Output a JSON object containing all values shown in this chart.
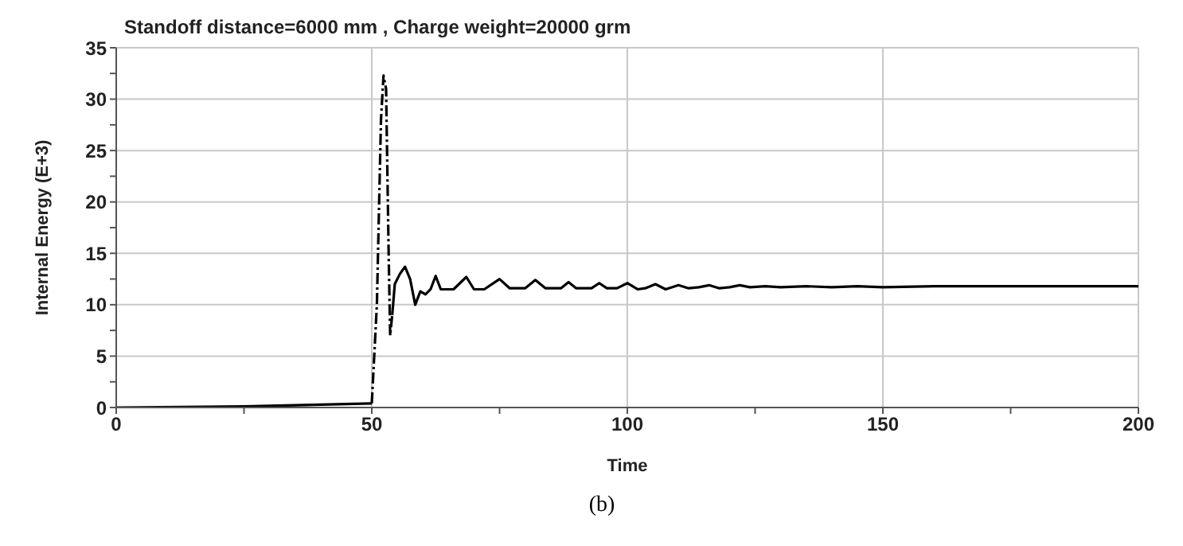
{
  "chart_data": {
    "type": "line",
    "title": "Standoff distance=6000 mm , Charge weight=20000 grm",
    "xlabel": "Time",
    "ylabel": "Internal Energy (E+3)",
    "annotations": [
      "(b)"
    ],
    "xlim": [
      0,
      200
    ],
    "ylim": [
      0,
      35
    ],
    "xticks": [
      0,
      {
        "value": 25,
        "label": null
      },
      50,
      {
        "value": 75,
        "label": null
      },
      100,
      {
        "value": 125,
        "label": null
      },
      150,
      {
        "value": 175,
        "label": null
      },
      200
    ],
    "yticks": [
      0,
      {
        "value": 2.5,
        "label": null
      },
      5,
      {
        "value": 7.5,
        "label": null
      },
      10,
      {
        "value": 12.5,
        "label": null
      },
      15,
      {
        "value": 17.5,
        "label": null
      },
      20,
      {
        "value": 22.5,
        "label": null
      },
      25,
      {
        "value": 27.5,
        "label": null
      },
      30,
      {
        "value": 32.5,
        "label": null
      },
      35
    ],
    "grid": true,
    "marker": "none",
    "series": [
      {
        "color": "#000000",
        "line_style": "solid",
        "x": [
          0,
          25,
          50
        ],
        "values": [
          0,
          0.1,
          0.4
        ]
      },
      {
        "color": "#000000",
        "line_style": "dashed",
        "x": [
          50,
          51,
          51.8,
          52.3,
          52.8,
          53.3,
          53.6,
          54
        ],
        "values": [
          0.4,
          10,
          28,
          32.3,
          31,
          15,
          7,
          9
        ]
      },
      {
        "color": "#000000",
        "line_style": "solid",
        "x": [
          54,
          54.5,
          55.5,
          56.5,
          57.5,
          58.5,
          59.5,
          60.5,
          61.5,
          62.5,
          63.5,
          65,
          66,
          68.5,
          70,
          72,
          75,
          77,
          80,
          82,
          84,
          87,
          88.5,
          90,
          93,
          94.5,
          96,
          98,
          100,
          102,
          103.5,
          105.5,
          107.5,
          110,
          112,
          114,
          116,
          118,
          120,
          122,
          124,
          127,
          130,
          135,
          140,
          145,
          150,
          160,
          170,
          180,
          190,
          200
        ],
        "values": [
          9,
          12,
          13,
          13.7,
          12.5,
          10,
          11.3,
          11,
          11.5,
          12.8,
          11.5,
          11.5,
          11.5,
          12.7,
          11.5,
          11.5,
          12.5,
          11.6,
          11.6,
          12.4,
          11.6,
          11.6,
          12.2,
          11.6,
          11.6,
          12.1,
          11.6,
          11.6,
          12.1,
          11.5,
          11.6,
          12,
          11.5,
          11.9,
          11.6,
          11.7,
          11.9,
          11.6,
          11.7,
          11.9,
          11.7,
          11.8,
          11.7,
          11.8,
          11.7,
          11.8,
          11.7,
          11.8,
          11.8,
          11.8,
          11.8,
          11.8
        ]
      }
    ]
  }
}
